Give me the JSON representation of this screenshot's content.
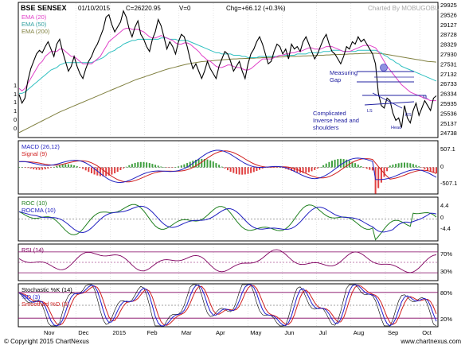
{
  "header": {
    "ticker": "BSE SENSEX",
    "date": "01/10/2015",
    "close": "C=26220.95",
    "volume": "V=0",
    "change": "Chg=+66.12 (+0.3%)",
    "watermark": "Charted By MOBUGOBU"
  },
  "footer": {
    "copyright": "© Copyright 2015 ChartNexus",
    "site": "www.chartnexus.com"
  },
  "colors": {
    "price": "#000000",
    "ema20": "#e040c8",
    "ema50": "#30c0c0",
    "ema200": "#808040",
    "macd": "#2020c0",
    "signal": "#d02020",
    "hist_up": "#40a040",
    "hist_down": "#e04040",
    "roc": "#208020",
    "rocma": "#2020c0",
    "rsi": "#800060",
    "stoch_k": "#000000",
    "stoch_d": "#2020d0",
    "stoch_sd": "#d02020",
    "annotation": "#2020a0"
  },
  "chart_data": [
    {
      "type": "line",
      "panel": "price",
      "x_tick_labels": [
        "Nov",
        "Dec",
        "2015",
        "Feb",
        "Mar",
        "Apr",
        "May",
        "Jun",
        "Jul",
        "Aug",
        "Sep",
        "Oct"
      ],
      "y_tick_labels": [
        "29925",
        "29526",
        "29127",
        "28728",
        "28329",
        "27930",
        "27531",
        "27132",
        "26733",
        "26334",
        "25935",
        "25536",
        "25137",
        "24738"
      ],
      "left_axis_labels": [
        "1",
        "1",
        "1",
        "1",
        "0",
        "0"
      ],
      "ylim": [
        24500,
        30000
      ],
      "legend": [
        "EMA (20)",
        "EMA (50)",
        "EMA (200)"
      ],
      "annotations": {
        "measuring_gap": "Measuring Gap",
        "pattern": "Complicated Inverse head and shoulders",
        "ls": "LS",
        "head": "Head",
        "rs": "RS",
        "nl": "NL"
      },
      "series": [
        {
          "name": "Close",
          "values": [
            26250,
            25900,
            26100,
            26800,
            27300,
            27600,
            27900,
            28050,
            27950,
            28200,
            28400,
            28100,
            27800,
            28300,
            28500,
            28000,
            27600,
            27200,
            27400,
            27800,
            27400,
            27100,
            26900,
            27300,
            27600,
            27800,
            28100,
            28300,
            28600,
            28900,
            29400,
            29500,
            29100,
            28800,
            29000,
            29200,
            29650,
            29400,
            28900,
            28600,
            29000,
            29250,
            28700,
            28500,
            28200,
            28000,
            28500,
            28800,
            29300,
            29050,
            28600,
            28100,
            28400,
            28200,
            27900,
            28400,
            28700,
            28600,
            28200,
            27700,
            27300,
            27500,
            27200,
            26900,
            27200,
            27600,
            27300,
            27100,
            26900,
            27400,
            27700,
            28000,
            27900,
            27600,
            27200,
            27400,
            27600,
            27200,
            26900,
            27500,
            27900,
            28100,
            28400,
            28600,
            28300,
            27900,
            27500,
            27600,
            28000,
            28300,
            28200,
            27900,
            28100,
            27700,
            28300,
            28100,
            28200,
            28000,
            28400,
            28600,
            28300,
            28000,
            27700,
            27900,
            28200,
            28500,
            28700,
            28300,
            28000,
            27900,
            27700,
            27500,
            27800,
            28200,
            28100,
            28400,
            28300,
            28600,
            28400,
            28500,
            28300,
            28100,
            27900,
            27500,
            26300,
            25800,
            25700,
            26100,
            26000,
            25500,
            25200,
            25300,
            24900,
            25800,
            25300,
            25100,
            25600,
            25900,
            25400,
            25700,
            26000,
            25800,
            25600,
            26100,
            26200
          ]
        },
        {
          "name": "EMA (20)",
          "values": [
            26500,
            26400,
            26500,
            26700,
            26900,
            27100,
            27300,
            27500,
            27600,
            27800,
            27900,
            28000,
            28000,
            28000,
            28100,
            28100,
            28000,
            27900,
            27800,
            27800,
            27700,
            27600,
            27500,
            27500,
            27500,
            27500,
            27600,
            27700,
            27800,
            28000,
            28200,
            28400,
            28500,
            28600,
            28700,
            28800,
            28900,
            28950,
            28950,
            28900,
            28900,
            28900,
            28850,
            28800,
            28700,
            28600,
            28550,
            28550,
            28600,
            28650,
            28600,
            28550,
            28500,
            28450,
            28350,
            28300,
            28300,
            28350,
            28350,
            28300,
            28200,
            28100,
            28000,
            27850,
            27750,
            27650,
            27600,
            27500,
            27400,
            27350,
            27350,
            27400,
            27450,
            27450,
            27400,
            27350,
            27350,
            27300,
            27250,
            27250,
            27300,
            27400,
            27500,
            27600,
            27700,
            27700,
            27700,
            27700,
            27750,
            27800,
            27850,
            27850,
            27900,
            27900,
            27950,
            27950,
            28000,
            28000,
            28050,
            28100,
            28150,
            28150,
            28100,
            28100,
            28100,
            28150,
            28200,
            28200,
            28200,
            28150,
            28100,
            28050,
            28000,
            28000,
            28000,
            28050,
            28100,
            28150,
            28200,
            28250,
            28250,
            28250,
            28200,
            28150,
            28000,
            27800,
            27600,
            27400,
            27250,
            27100,
            26950,
            26800,
            26650,
            26550,
            26450,
            26350,
            26300,
            26250,
            26200,
            26150,
            26100,
            26050,
            26000,
            26000,
            26000
          ]
        },
        {
          "name": "EMA (50)",
          "values": [
            26300,
            26300,
            26350,
            26450,
            26550,
            26650,
            26750,
            26850,
            26950,
            27050,
            27150,
            27250,
            27300,
            27350,
            27450,
            27500,
            27550,
            27550,
            27550,
            27550,
            27550,
            27550,
            27550,
            27550,
            27550,
            27550,
            27600,
            27650,
            27700,
            27750,
            27850,
            27950,
            28000,
            28050,
            28150,
            28200,
            28300,
            28350,
            28400,
            28450,
            28450,
            28500,
            28500,
            28500,
            28500,
            28500,
            28500,
            28500,
            28500,
            28550,
            28550,
            28550,
            28500,
            28500,
            28500,
            28450,
            28450,
            28450,
            28450,
            28400,
            28350,
            28300,
            28250,
            28200,
            28150,
            28100,
            28050,
            28000,
            27950,
            27950,
            27900,
            27900,
            27900,
            27900,
            27850,
            27850,
            27850,
            27800,
            27800,
            27750,
            27750,
            27750,
            27750,
            27800,
            27800,
            27800,
            27800,
            27800,
            27800,
            27800,
            27850,
            27850,
            27850,
            27850,
            27850,
            27850,
            27900,
            27900,
            27900,
            27900,
            27950,
            27950,
            27950,
            27950,
            27950,
            28000,
            28000,
            28000,
            28050,
            28050,
            28050,
            28050,
            28000,
            28000,
            28000,
            28000,
            28000,
            28050,
            28050,
            28050,
            28050,
            28050,
            28050,
            28050,
            28000,
            27950,
            27850,
            27800,
            27700,
            27650,
            27550,
            27500,
            27400,
            27350,
            27300,
            27250,
            27200,
            27150,
            27100,
            27050,
            27000,
            26950,
            26900,
            26850,
            26800
          ]
        },
        {
          "name": "EMA (200)",
          "values": [
            24700,
            24760,
            24820,
            24880,
            24940,
            25000,
            25060,
            25120,
            25180,
            25240,
            25300,
            25360,
            25420,
            25480,
            25540,
            25590,
            25640,
            25690,
            25740,
            25790,
            25840,
            25890,
            25940,
            25990,
            26040,
            26090,
            26140,
            26190,
            26240,
            26290,
            26340,
            26390,
            26440,
            26490,
            26540,
            26590,
            26640,
            26690,
            26740,
            26790,
            26840,
            26880,
            26920,
            26960,
            27000,
            27040,
            27080,
            27120,
            27160,
            27200,
            27240,
            27280,
            27310,
            27340,
            27370,
            27400,
            27430,
            27460,
            27490,
            27510,
            27530,
            27550,
            27570,
            27590,
            27600,
            27610,
            27620,
            27630,
            27640,
            27650,
            27660,
            27670,
            27680,
            27690,
            27700,
            27700,
            27710,
            27710,
            27720,
            27720,
            27730,
            27730,
            27740,
            27740,
            27750,
            27750,
            27760,
            27760,
            27770,
            27770,
            27780,
            27780,
            27790,
            27790,
            27800,
            27800,
            27810,
            27810,
            27820,
            27820,
            27830,
            27830,
            27840,
            27840,
            27850,
            27850,
            27860,
            27860,
            27870,
            27870,
            27880,
            27880,
            27890,
            27890,
            27900,
            27900,
            27910,
            27910,
            27920,
            27920,
            27930,
            27930,
            27930,
            27930,
            27920,
            27910,
            27900,
            27880,
            27860,
            27840,
            27820,
            27800,
            27780,
            27760,
            27740,
            27720,
            27700,
            27680,
            27660,
            27640,
            27620,
            27600,
            27590,
            27580,
            27570
          ]
        }
      ]
    },
    {
      "type": "bar",
      "panel": "macd",
      "legend": [
        "MACD (26,12)",
        "Signal (9)"
      ],
      "y_tick_labels": [
        "507.1",
        "0",
        "-507.1"
      ],
      "ylim": [
        -760,
        760
      ]
    },
    {
      "type": "line",
      "panel": "roc",
      "legend": [
        "ROC (10)",
        "ROCMA (10)"
      ],
      "y_tick_labels": [
        "4.4",
        "0",
        "-4.4"
      ],
      "ylim": [
        -7,
        7
      ]
    },
    {
      "type": "line",
      "panel": "rsi",
      "legend": [
        "RSI (14)"
      ],
      "y_tick_labels": [
        "70%",
        "30%"
      ],
      "ylim": [
        15,
        85
      ]
    },
    {
      "type": "line",
      "panel": "stochastic",
      "legend": [
        "Stochastic %K (14)",
        "%D (3)",
        "Smoothed %D (3)"
      ],
      "y_tick_labels": [
        "80%",
        "20%"
      ],
      "ylim": [
        0,
        100
      ]
    }
  ]
}
